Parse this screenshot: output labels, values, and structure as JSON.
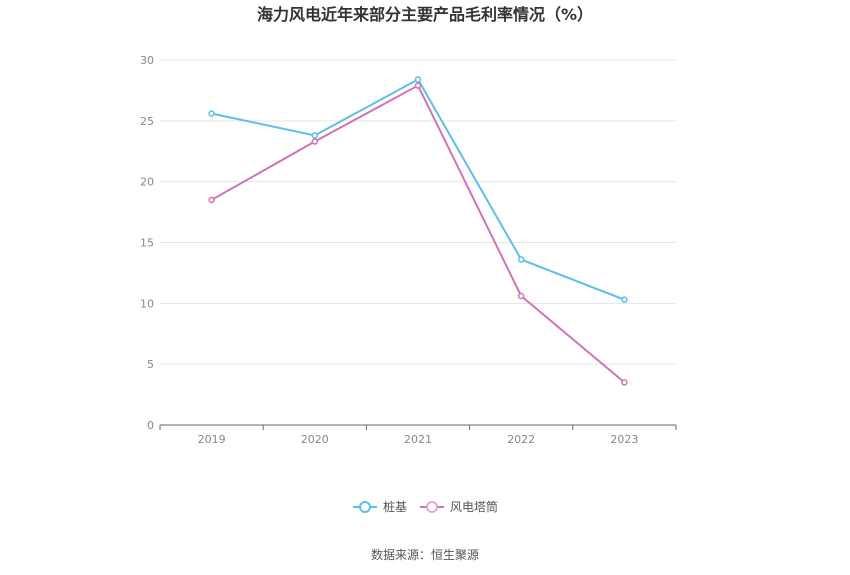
{
  "chart_data": {
    "type": "line",
    "title": "海力风电近年来部分主要产品毛利率情况（%）",
    "categories": [
      "2019",
      "2020",
      "2021",
      "2022",
      "2023"
    ],
    "ylim": [
      0,
      30
    ],
    "yticks": [
      "0",
      "5",
      "10",
      "15",
      "20",
      "25",
      "30"
    ],
    "grid": true,
    "legend_position": "bottom-center",
    "series": [
      {
        "name": "桩基",
        "color": "#5bbfea",
        "values": [
          25.6,
          23.8,
          28.4,
          13.6,
          10.3
        ]
      },
      {
        "name": "风电塔筒",
        "color": "#d272b8",
        "values": [
          18.5,
          23.3,
          27.9,
          10.6,
          3.5
        ]
      }
    ]
  },
  "source": "数据来源：恒生聚源"
}
